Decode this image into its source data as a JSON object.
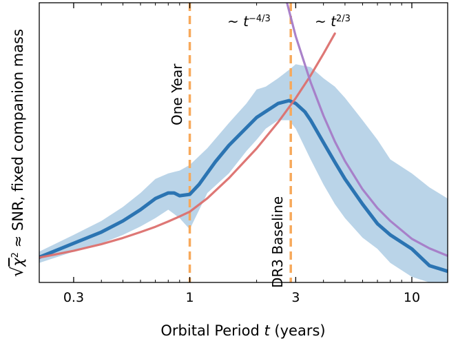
{
  "chart_data": {
    "type": "line",
    "x_scale": "log",
    "xlim": [
      0.21,
      14.5
    ],
    "ylim": [
      0,
      1
    ],
    "xlabel_prefix": "Orbital Period ",
    "xlabel_var": "t",
    "xlabel_suffix": " (years)",
    "ylabel": "√χ² ≈ SNR, fixed companion mass",
    "ylabel_sqrt": "√",
    "ylabel_chi": "χ",
    "ylabel_sup": "2",
    "ylabel_rest": " ≈ SNR, fixed companion mass",
    "x_ticks": [
      {
        "value": 0.3,
        "label": "0.3"
      },
      {
        "value": 1,
        "label": "1"
      },
      {
        "value": 3,
        "label": "3"
      },
      {
        "value": 10,
        "label": "10"
      }
    ],
    "series": [
      {
        "kind": "band",
        "color": "#a9c9e2",
        "x": [
          0.21,
          0.3,
          0.4,
          0.5,
          0.6,
          0.7,
          0.8,
          0.9,
          1.0,
          1.2,
          1.5,
          1.8,
          2.0,
          2.2,
          2.5,
          2.8,
          3.0,
          3.5,
          4.0,
          4.5,
          5.0,
          6.0,
          7.0,
          8.0,
          10.0,
          12.0,
          14.5
        ],
        "upper": [
          0.11,
          0.17,
          0.22,
          0.27,
          0.32,
          0.37,
          0.39,
          0.4,
          0.42,
          0.48,
          0.57,
          0.64,
          0.69,
          0.7,
          0.73,
          0.76,
          0.78,
          0.77,
          0.73,
          0.7,
          0.66,
          0.58,
          0.51,
          0.44,
          0.39,
          0.34,
          0.3
        ],
        "lower": [
          0.07,
          0.11,
          0.14,
          0.17,
          0.2,
          0.23,
          0.26,
          0.23,
          0.19,
          0.32,
          0.39,
          0.47,
          0.51,
          0.55,
          0.58,
          0.58,
          0.55,
          0.44,
          0.35,
          0.28,
          0.23,
          0.16,
          0.12,
          0.07,
          0.02,
          0.0,
          0.0
        ]
      },
      {
        "kind": "line",
        "color": "#2b74b2",
        "x": [
          0.21,
          0.3,
          0.4,
          0.5,
          0.6,
          0.7,
          0.8,
          0.85,
          0.9,
          1.0,
          1.1,
          1.3,
          1.5,
          2.0,
          2.5,
          2.8,
          3.0,
          3.3,
          3.5,
          4.0,
          4.5,
          5.0,
          6.0,
          7.0,
          8.0,
          10.0,
          12.0,
          14.5
        ],
        "y": [
          0.09,
          0.14,
          0.18,
          0.22,
          0.26,
          0.3,
          0.32,
          0.32,
          0.31,
          0.315,
          0.35,
          0.43,
          0.49,
          0.59,
          0.64,
          0.65,
          0.64,
          0.61,
          0.58,
          0.5,
          0.43,
          0.37,
          0.28,
          0.21,
          0.17,
          0.12,
          0.06,
          0.04
        ]
      },
      {
        "kind": "line",
        "color": "#dc706e",
        "formula": "t^(2/3)",
        "x": [
          0.21,
          0.3,
          0.4,
          0.5,
          0.6,
          0.7,
          0.8,
          0.9,
          1.0,
          1.2,
          1.5,
          2.0,
          2.5,
          3.0,
          3.5,
          4.0,
          4.5
        ],
        "y": [
          0.089,
          0.113,
          0.137,
          0.159,
          0.18,
          0.199,
          0.218,
          0.236,
          0.253,
          0.301,
          0.373,
          0.479,
          0.573,
          0.659,
          0.74,
          0.818,
          0.89
        ]
      },
      {
        "kind": "line",
        "color": "#a57bc7",
        "formula": "t^(-4/3)",
        "x": [
          2.6,
          3.0,
          3.5,
          4.0,
          4.5,
          5.0,
          6.0,
          7.0,
          8.0,
          10.0,
          12.0,
          14.5
        ],
        "y": [
          1.07,
          0.88,
          0.716,
          0.596,
          0.504,
          0.434,
          0.333,
          0.266,
          0.22,
          0.156,
          0.122,
          0.095
        ]
      }
    ],
    "vlines": [
      {
        "x": 1.0,
        "color": "#f7a95b",
        "label": "One Year"
      },
      {
        "x": 2.85,
        "color": "#f7a95b",
        "label": "DR3 Baseline"
      }
    ],
    "annotations": [
      {
        "text_prefix": "~ ",
        "var": "t",
        "sup": "−4/3",
        "color": "#a57bc7",
        "x": 1.7,
        "y": 0.95
      },
      {
        "text_prefix": "~ ",
        "var": "t",
        "sup": "2/3",
        "color": "#d7191c",
        "x": 3.9,
        "y": 0.95
      }
    ],
    "grid": false,
    "legend": "none"
  }
}
